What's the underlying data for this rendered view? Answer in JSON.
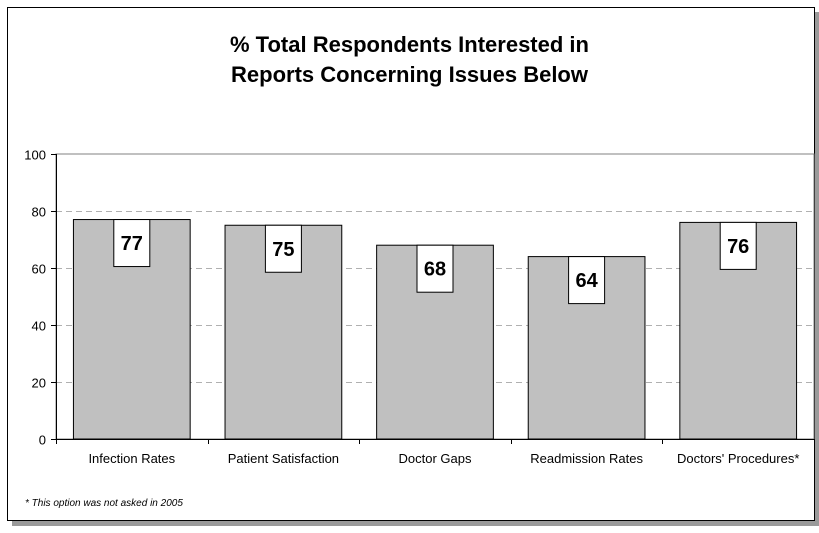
{
  "chart_data": {
    "type": "bar",
    "title_lines": [
      "% Total Respondents Interested in",
      "Reports Concerning Issues Below"
    ],
    "categories": [
      "Infection Rates",
      "Patient Satisfaction",
      "Doctor Gaps",
      "Readmission Rates",
      "Doctors' Procedures*"
    ],
    "values": [
      77,
      75,
      68,
      64,
      76
    ],
    "data_labels": [
      "77",
      "75",
      "68",
      "64",
      "76"
    ],
    "ylim": [
      0,
      100
    ],
    "yticks": [
      0,
      20,
      40,
      60,
      80,
      100
    ],
    "grid": true,
    "legend": "none",
    "bar_color": "#c0c0c0",
    "footnote": "* This option was not asked in 2005"
  }
}
